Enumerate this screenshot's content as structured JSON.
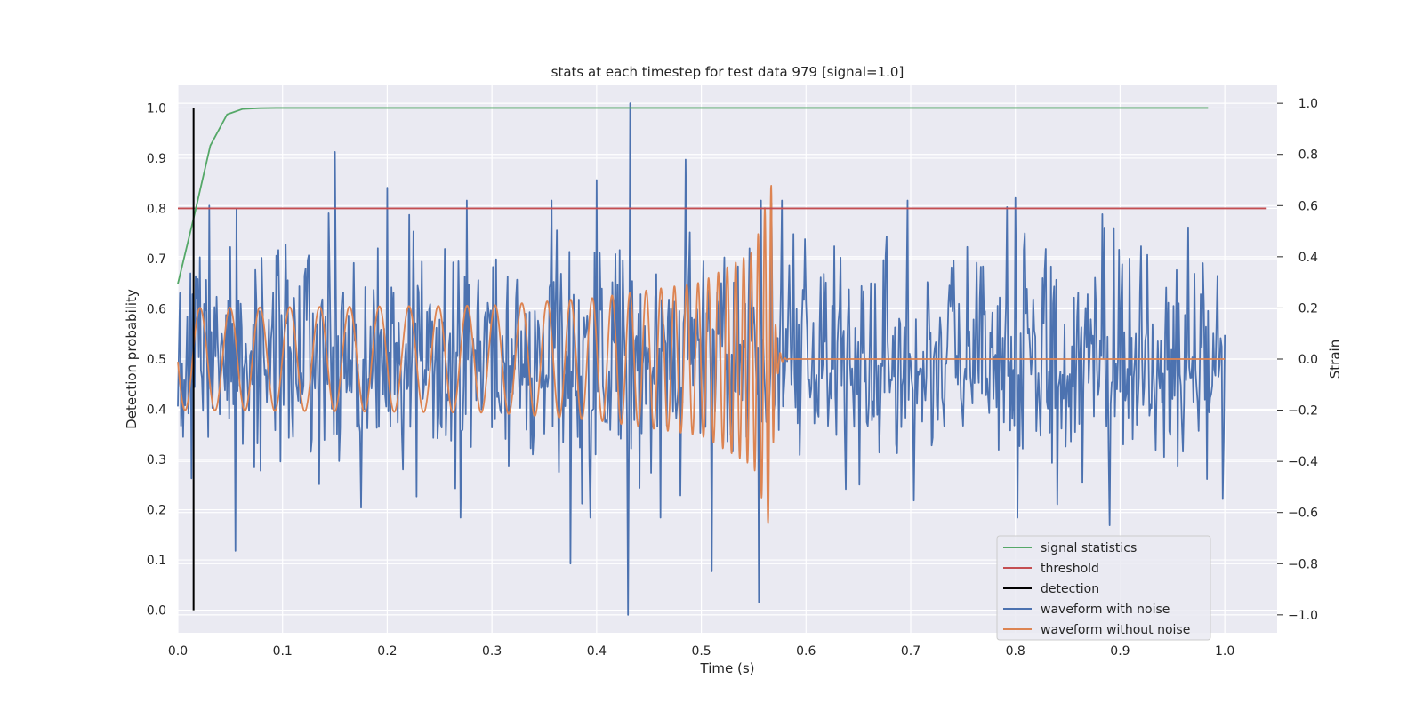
{
  "chart_data": {
    "type": "line",
    "title": "stats at each timestep for test data 979 [signal=1.0]",
    "xlabel": "Time (s)",
    "ylabel": "Detection probability",
    "ylabel_right": "Strain",
    "xlim": [
      0.0,
      1.05
    ],
    "ylim": [
      -0.045,
      1.045
    ],
    "ylim_right": [
      -1.07,
      1.07
    ],
    "xticks": [
      0.0,
      0.1,
      0.2,
      0.3,
      0.4,
      0.5,
      0.6,
      0.7,
      0.8,
      0.9,
      1.0
    ],
    "xtick_labels": [
      "0.0",
      "0.1",
      "0.2",
      "0.3",
      "0.4",
      "0.5",
      "0.6",
      "0.7",
      "0.8",
      "0.9",
      "1.0"
    ],
    "yticks": [
      0.0,
      0.1,
      0.2,
      0.3,
      0.4,
      0.5,
      0.6,
      0.7,
      0.8,
      0.9,
      1.0
    ],
    "ytick_labels": [
      "0.0",
      "0.1",
      "0.2",
      "0.3",
      "0.4",
      "0.5",
      "0.6",
      "0.7",
      "0.8",
      "0.9",
      "1.0"
    ],
    "yticks_right": [
      -1.0,
      -0.8,
      -0.6,
      -0.4,
      -0.2,
      0.0,
      0.2,
      0.4,
      0.6,
      0.8,
      1.0
    ],
    "ytick_labels_right": [
      "−1.0",
      "−0.8",
      "−0.6",
      "−0.4",
      "−0.2",
      "0.0",
      "0.2",
      "0.4",
      "0.6",
      "0.8",
      "1.0"
    ],
    "grid": true,
    "legend_position": "lower-right",
    "series": [
      {
        "name": "signal statistics",
        "axis": "left",
        "color": "#55a868",
        "x": [
          0.0,
          0.015,
          0.031,
          0.047,
          0.062,
          0.078,
          0.094,
          0.2,
          0.4,
          0.6,
          0.8,
          0.984
        ],
        "y": [
          0.65,
          0.78,
          0.925,
          0.987,
          0.998,
          0.9995,
          1.0,
          1.0,
          1.0,
          1.0,
          1.0,
          1.0
        ]
      },
      {
        "name": "threshold",
        "axis": "left",
        "color": "#c44e52",
        "x": [
          0.0,
          1.04
        ],
        "y": [
          0.8,
          0.8
        ]
      },
      {
        "name": "detection",
        "axis": "left",
        "color": "#000000",
        "x": [
          0.015,
          0.015
        ],
        "y": [
          0.0,
          1.0
        ]
      },
      {
        "name": "waveform with noise",
        "axis": "right",
        "color": "#4c72b0",
        "x_range": [
          0.0,
          1.0
        ],
        "noise_amplitude": 0.22,
        "peaks": [
          {
            "x": 0.03,
            "y": 0.6
          },
          {
            "x": 0.055,
            "y": -0.75
          },
          {
            "x": 0.15,
            "y": 0.81
          },
          {
            "x": 0.2,
            "y": 0.67
          },
          {
            "x": 0.375,
            "y": -0.8
          },
          {
            "x": 0.4,
            "y": 0.7
          },
          {
            "x": 0.43,
            "y": -1.0
          },
          {
            "x": 0.432,
            "y": 1.0
          },
          {
            "x": 0.485,
            "y": 0.78
          },
          {
            "x": 0.51,
            "y": -0.83
          },
          {
            "x": 0.555,
            "y": -0.95
          },
          {
            "x": 0.8,
            "y": 0.63
          },
          {
            "x": 0.89,
            "y": -0.65
          }
        ]
      },
      {
        "name": "waveform without noise",
        "axis": "right",
        "color": "#dd8452",
        "x_range": [
          0.0,
          1.0
        ],
        "merger_time": 0.567,
        "envelope": [
          {
            "x": 0.0,
            "y": 0.2
          },
          {
            "x": 0.3,
            "y": 0.21
          },
          {
            "x": 0.4,
            "y": 0.24
          },
          {
            "x": 0.5,
            "y": 0.3
          },
          {
            "x": 0.55,
            "y": 0.42
          },
          {
            "x": 0.566,
            "y": 0.68
          }
        ],
        "start_frequency_hz": 35,
        "end_frequency_hz": 170
      }
    ]
  }
}
